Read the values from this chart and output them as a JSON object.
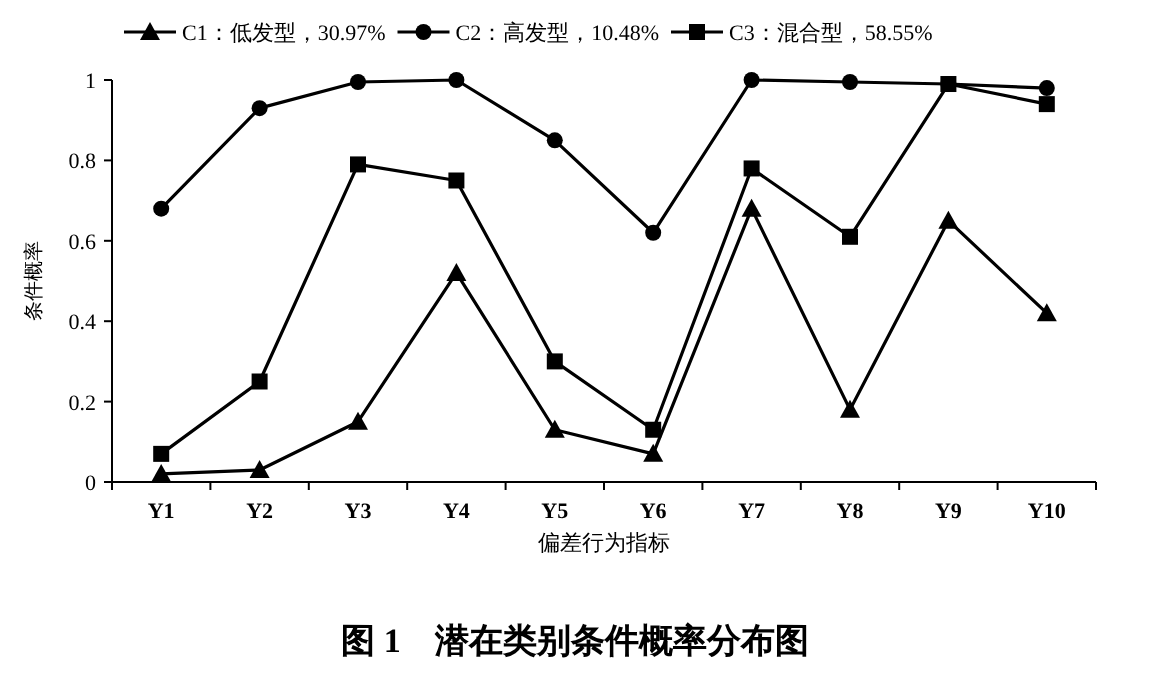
{
  "chart_data": {
    "type": "line",
    "title": "图 1　潜在类别条件概率分布图",
    "xlabel": "偏差行为指标",
    "ylabel": "条件概率",
    "categories": [
      "Y1",
      "Y2",
      "Y3",
      "Y4",
      "Y5",
      "Y6",
      "Y7",
      "Y8",
      "Y9",
      "Y10"
    ],
    "series": [
      {
        "name": "C1：低发型，30.97%",
        "color": "#000000",
        "marker": "triangle",
        "values": [
          0.02,
          0.03,
          0.15,
          0.52,
          0.13,
          0.07,
          0.68,
          0.18,
          0.65,
          0.42
        ]
      },
      {
        "name": "C2：高发型，10.48%",
        "color": "#000000",
        "marker": "circle",
        "values": [
          0.68,
          0.93,
          0.995,
          1.0,
          0.85,
          0.62,
          1.0,
          0.995,
          0.99,
          0.98
        ]
      },
      {
        "name": "C3：混合型，58.55%",
        "color": "#000000",
        "marker": "square",
        "values": [
          0.07,
          0.25,
          0.79,
          0.75,
          0.3,
          0.13,
          0.78,
          0.61,
          0.99,
          0.94
        ]
      }
    ],
    "ylim": [
      0,
      1
    ],
    "yticks": [
      0,
      0.2,
      0.4,
      0.6,
      0.8,
      1
    ],
    "grid": false,
    "legend": "top",
    "line_style": "solid"
  }
}
